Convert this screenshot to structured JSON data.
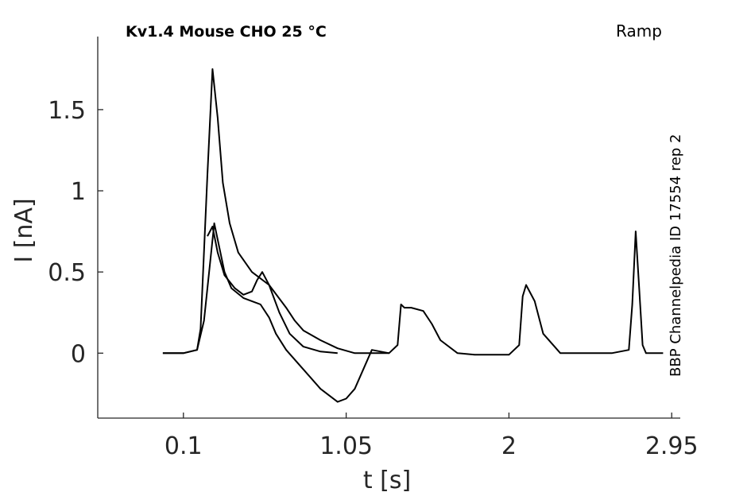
{
  "chart_data": {
    "type": "line",
    "title": "Kv1.4  Mouse  CHO  25 °C",
    "protocol": "Ramp",
    "side_label": "BBP Channelpedia ID 17554 rep 2",
    "xlabel": "t [s]",
    "ylabel": "I [nA]",
    "xlim": [
      -0.4,
      3.0
    ],
    "ylim": [
      -0.4,
      1.95
    ],
    "xticks": [
      0.1,
      1.05,
      2,
      2.95
    ],
    "xtick_labels": [
      "0.1",
      "1.05",
      "2",
      "2.95"
    ],
    "yticks": [
      0,
      0.5,
      1,
      1.5
    ],
    "ytick_labels": [
      "0",
      "0.5",
      "1",
      "1.5"
    ],
    "grid": false,
    "series": [
      {
        "x": [
          -0.02,
          0.1,
          0.18,
          0.2,
          0.24,
          0.27,
          0.3,
          0.33,
          0.37,
          0.42,
          0.5,
          0.6,
          0.7,
          0.75,
          0.8,
          0.9,
          1.0,
          1.1,
          1.3,
          1.35,
          1.37,
          1.39,
          1.43,
          1.5,
          1.55,
          1.6,
          1.7,
          1.8,
          2.0,
          2.06,
          2.08,
          2.1,
          2.15,
          2.2,
          2.3,
          2.35,
          2.4,
          2.6,
          2.7,
          2.72,
          2.74,
          2.76,
          2.78,
          2.8,
          2.9
        ],
        "y": [
          0,
          0,
          0.02,
          0.15,
          1.1,
          1.75,
          1.45,
          1.05,
          0.8,
          0.62,
          0.5,
          0.42,
          0.28,
          0.2,
          0.14,
          0.08,
          0.03,
          0.0,
          0.0,
          0.05,
          0.3,
          0.28,
          0.28,
          0.26,
          0.18,
          0.08,
          0.0,
          -0.01,
          -0.01,
          0.05,
          0.35,
          0.42,
          0.32,
          0.12,
          0.0,
          0.0,
          0.0,
          0.0,
          0.02,
          0.3,
          0.75,
          0.4,
          0.05,
          0.0,
          0.0
        ]
      },
      {
        "x": [
          -0.02,
          0.1,
          0.18,
          0.22,
          0.26,
          0.28,
          0.3,
          0.34,
          0.38,
          0.45,
          0.5,
          0.55,
          0.6,
          0.64,
          0.7,
          0.8,
          0.9,
          1.0,
          1.05,
          1.1,
          1.2,
          1.3
        ],
        "y": [
          0,
          0,
          0.02,
          0.2,
          0.6,
          0.8,
          0.7,
          0.5,
          0.4,
          0.34,
          0.32,
          0.3,
          0.22,
          0.12,
          0.02,
          -0.1,
          -0.22,
          -0.3,
          -0.28,
          -0.22,
          0.02,
          0.0
        ]
      },
      {
        "x": [
          0.24,
          0.27,
          0.3,
          0.34,
          0.4,
          0.45,
          0.5,
          0.53,
          0.56,
          0.6,
          0.66,
          0.72,
          0.8,
          0.9,
          1.0
        ],
        "y": [
          0.72,
          0.78,
          0.62,
          0.48,
          0.4,
          0.36,
          0.38,
          0.45,
          0.5,
          0.42,
          0.25,
          0.12,
          0.04,
          0.01,
          0.0
        ]
      }
    ]
  }
}
